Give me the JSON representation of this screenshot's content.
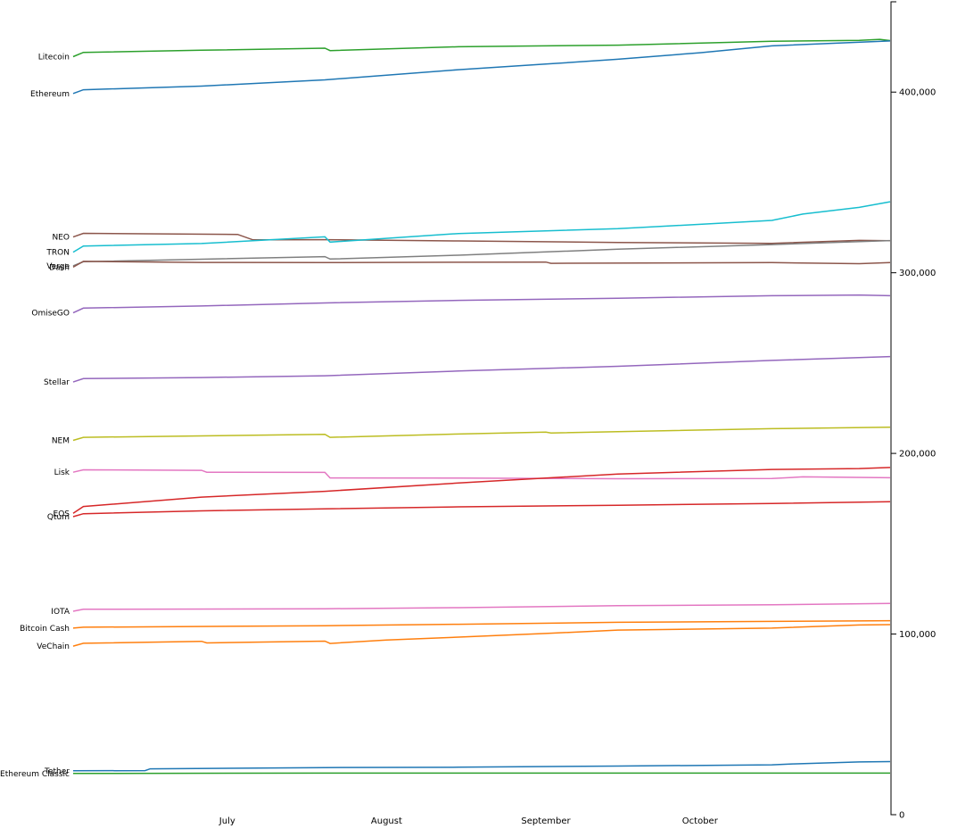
{
  "chart_data": {
    "type": "line",
    "title": "",
    "xlabel": "",
    "ylabel": "",
    "x_range": [
      "2018-06-01",
      "2018-11-07"
    ],
    "ylim": [
      0,
      450000
    ],
    "x_ticks": [
      {
        "label": "July",
        "date": "2018-07-01"
      },
      {
        "label": "August",
        "date": "2018-08-01"
      },
      {
        "label": "September",
        "date": "2018-09-01"
      },
      {
        "label": "October",
        "date": "2018-10-01"
      }
    ],
    "y_ticks": [
      {
        "label": "0",
        "value": 0
      },
      {
        "label": "100,000",
        "value": 100000
      },
      {
        "label": "200,000",
        "value": 200000
      },
      {
        "label": "300,000",
        "value": 300000
      },
      {
        "label": "400,000",
        "value": 400000
      }
    ],
    "grid": false,
    "legend": "inline-left",
    "series": [
      {
        "name": "Litecoin",
        "color": "#2ca02c",
        "points": [
          [
            "2018-06-01",
            419600
          ],
          [
            "2018-06-03",
            422000
          ],
          [
            "2018-06-26",
            423200
          ],
          [
            "2018-07-20",
            424300
          ],
          [
            "2018-07-21",
            423000
          ],
          [
            "2018-08-15",
            425100
          ],
          [
            "2018-09-15",
            426000
          ],
          [
            "2018-10-15",
            428100
          ],
          [
            "2018-11-01",
            428600
          ],
          [
            "2018-11-05",
            429200
          ],
          [
            "2018-11-07",
            428500
          ]
        ]
      },
      {
        "name": "Ethereum",
        "color": "#1f77b4",
        "points": [
          [
            "2018-06-01",
            399200
          ],
          [
            "2018-06-03",
            401300
          ],
          [
            "2018-06-26",
            403300
          ],
          [
            "2018-07-20",
            406800
          ],
          [
            "2018-08-15",
            412400
          ],
          [
            "2018-09-01",
            415500
          ],
          [
            "2018-09-15",
            418200
          ],
          [
            "2018-10-01",
            421800
          ],
          [
            "2018-10-15",
            425600
          ],
          [
            "2018-11-07",
            428300
          ]
        ]
      },
      {
        "name": "NEO",
        "color": "#8c564b",
        "points": [
          [
            "2018-06-01",
            319800
          ],
          [
            "2018-06-03",
            321800
          ],
          [
            "2018-07-03",
            321200
          ],
          [
            "2018-07-06",
            318200
          ],
          [
            "2018-07-20",
            318300
          ],
          [
            "2018-08-15",
            317600
          ],
          [
            "2018-09-15",
            316800
          ],
          [
            "2018-10-15",
            316300
          ],
          [
            "2018-11-01",
            317900
          ],
          [
            "2018-11-07",
            317700
          ]
        ]
      },
      {
        "name": "TRON",
        "color": "#17becf",
        "points": [
          [
            "2018-06-01",
            311400
          ],
          [
            "2018-06-03",
            314800
          ],
          [
            "2018-06-26",
            316200
          ],
          [
            "2018-07-20",
            319900
          ],
          [
            "2018-07-21",
            317000
          ],
          [
            "2018-08-15",
            321700
          ],
          [
            "2018-09-15",
            324400
          ],
          [
            "2018-10-15",
            329000
          ],
          [
            "2018-10-21",
            332500
          ],
          [
            "2018-11-01",
            336200
          ],
          [
            "2018-11-07",
            339300
          ]
        ]
      },
      {
        "name": "Verge",
        "color": "#7f7f7f",
        "points": [
          [
            "2018-06-01",
            303800
          ],
          [
            "2018-06-03",
            306100
          ],
          [
            "2018-07-20",
            308900
          ],
          [
            "2018-07-21",
            307600
          ],
          [
            "2018-08-15",
            309700
          ],
          [
            "2018-09-15",
            313000
          ],
          [
            "2018-10-15",
            315600
          ],
          [
            "2018-11-07",
            317800
          ]
        ]
      },
      {
        "name": "Dash",
        "color": "#8c564b",
        "points": [
          [
            "2018-06-01",
            303100
          ],
          [
            "2018-06-03",
            306300
          ],
          [
            "2018-06-26",
            305700
          ],
          [
            "2018-07-20",
            305600
          ],
          [
            "2018-08-15",
            305800
          ],
          [
            "2018-09-01",
            305900
          ],
          [
            "2018-09-02",
            305200
          ],
          [
            "2018-10-15",
            305600
          ],
          [
            "2018-11-01",
            305000
          ],
          [
            "2018-11-07",
            305600
          ]
        ]
      },
      {
        "name": "OmiseGO",
        "color": "#9467bd",
        "points": [
          [
            "2018-06-01",
            277800
          ],
          [
            "2018-06-03",
            280400
          ],
          [
            "2018-06-26",
            281600
          ],
          [
            "2018-07-20",
            283300
          ],
          [
            "2018-08-15",
            284700
          ],
          [
            "2018-09-15",
            285900
          ],
          [
            "2018-10-15",
            287300
          ],
          [
            "2018-11-01",
            287700
          ],
          [
            "2018-11-07",
            287300
          ]
        ]
      },
      {
        "name": "Stellar",
        "color": "#9467bd",
        "points": [
          [
            "2018-06-01",
            239500
          ],
          [
            "2018-06-03",
            241400
          ],
          [
            "2018-06-26",
            242000
          ],
          [
            "2018-07-20",
            243000
          ],
          [
            "2018-08-15",
            245600
          ],
          [
            "2018-09-15",
            248200
          ],
          [
            "2018-10-15",
            251500
          ],
          [
            "2018-11-07",
            253600
          ]
        ]
      },
      {
        "name": "NEM",
        "color": "#bcbd22",
        "points": [
          [
            "2018-06-01",
            207200
          ],
          [
            "2018-06-03",
            208900
          ],
          [
            "2018-06-26",
            209700
          ],
          [
            "2018-07-20",
            210600
          ],
          [
            "2018-07-21",
            208900
          ],
          [
            "2018-08-15",
            210700
          ],
          [
            "2018-09-01",
            211800
          ],
          [
            "2018-09-02",
            211300
          ],
          [
            "2018-10-15",
            213700
          ],
          [
            "2018-11-07",
            214500
          ]
        ]
      },
      {
        "name": "Lisk",
        "color": "#e377c2",
        "points": [
          [
            "2018-06-01",
            189600
          ],
          [
            "2018-06-03",
            190900
          ],
          [
            "2018-06-26",
            190600
          ],
          [
            "2018-06-27",
            189600
          ],
          [
            "2018-07-20",
            189500
          ],
          [
            "2018-07-21",
            186400
          ],
          [
            "2018-08-15",
            186300
          ],
          [
            "2018-09-15",
            186000
          ],
          [
            "2018-10-15",
            186100
          ],
          [
            "2018-10-21",
            187000
          ],
          [
            "2018-11-07",
            186500
          ]
        ]
      },
      {
        "name": "EOS",
        "color": "#d62728",
        "points": [
          [
            "2018-06-01",
            166800
          ],
          [
            "2018-06-03",
            170600
          ],
          [
            "2018-06-26",
            175800
          ],
          [
            "2018-07-20",
            179000
          ],
          [
            "2018-08-15",
            183600
          ],
          [
            "2018-09-15",
            188600
          ],
          [
            "2018-10-15",
            191100
          ],
          [
            "2018-11-01",
            191600
          ],
          [
            "2018-11-07",
            192200
          ]
        ]
      },
      {
        "name": "Qtum",
        "color": "#d62728",
        "points": [
          [
            "2018-06-01",
            165000
          ],
          [
            "2018-06-03",
            166600
          ],
          [
            "2018-06-26",
            168200
          ],
          [
            "2018-07-20",
            169300
          ],
          [
            "2018-08-15",
            170400
          ],
          [
            "2018-09-15",
            171300
          ],
          [
            "2018-10-15",
            172300
          ],
          [
            "2018-11-07",
            173300
          ]
        ]
      },
      {
        "name": "IOTA",
        "color": "#e377c2",
        "points": [
          [
            "2018-06-01",
            112600
          ],
          [
            "2018-06-03",
            113700
          ],
          [
            "2018-07-20",
            114000
          ],
          [
            "2018-08-15",
            114600
          ],
          [
            "2018-09-15",
            115700
          ],
          [
            "2018-10-15",
            116200
          ],
          [
            "2018-11-07",
            116900
          ]
        ]
      },
      {
        "name": "Bitcoin Cash",
        "color": "#ff7f0e",
        "points": [
          [
            "2018-06-01",
            103300
          ],
          [
            "2018-06-03",
            103800
          ],
          [
            "2018-07-20",
            104600
          ],
          [
            "2018-08-15",
            105400
          ],
          [
            "2018-09-15",
            106500
          ],
          [
            "2018-10-15",
            107000
          ],
          [
            "2018-11-07",
            107400
          ]
        ]
      },
      {
        "name": "VeChain",
        "color": "#ff7f0e",
        "points": [
          [
            "2018-06-01",
            93300
          ],
          [
            "2018-06-03",
            94900
          ],
          [
            "2018-06-26",
            96000
          ],
          [
            "2018-06-27",
            95100
          ],
          [
            "2018-07-20",
            96100
          ],
          [
            "2018-07-21",
            94800
          ],
          [
            "2018-08-01",
            96700
          ],
          [
            "2018-08-15",
            98300
          ],
          [
            "2018-09-01",
            100300
          ],
          [
            "2018-09-15",
            102200
          ],
          [
            "2018-10-15",
            103300
          ],
          [
            "2018-11-01",
            105000
          ],
          [
            "2018-11-07",
            105200
          ]
        ]
      },
      {
        "name": "Tether",
        "color": "#1f77b4",
        "points": [
          [
            "2018-06-01",
            24300
          ],
          [
            "2018-06-15",
            24400
          ],
          [
            "2018-06-16",
            25400
          ],
          [
            "2018-07-20",
            26100
          ],
          [
            "2018-08-15",
            26300
          ],
          [
            "2018-09-15",
            26900
          ],
          [
            "2018-10-15",
            27600
          ],
          [
            "2018-10-19",
            28100
          ],
          [
            "2018-11-01",
            29200
          ],
          [
            "2018-11-07",
            29400
          ]
        ]
      },
      {
        "name": "Ethereum Classic",
        "color": "#2ca02c",
        "points": [
          [
            "2018-06-01",
            22800
          ],
          [
            "2018-07-20",
            23000
          ],
          [
            "2018-09-15",
            23000
          ],
          [
            "2018-11-07",
            23000
          ]
        ]
      }
    ]
  }
}
